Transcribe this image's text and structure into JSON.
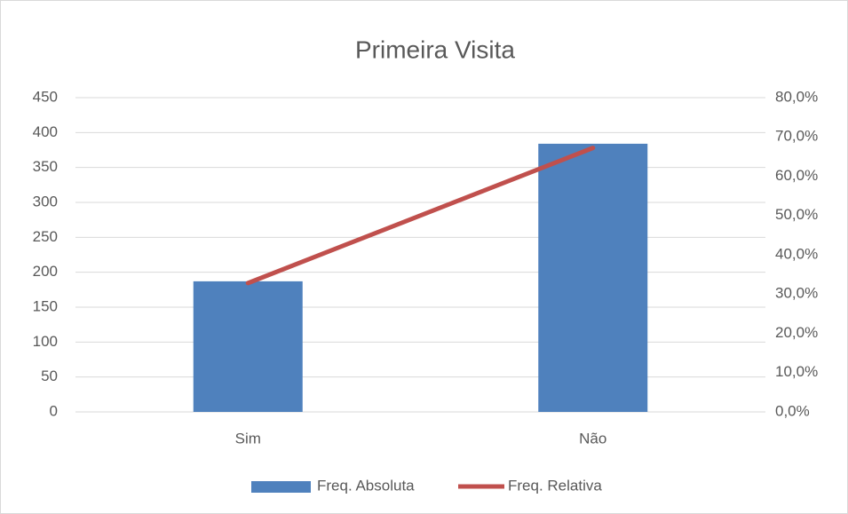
{
  "chart_data": {
    "type": "bar",
    "title": "Primeira Visita",
    "categories": [
      "Sim",
      "Não"
    ],
    "series": [
      {
        "name": "Freq. Absoluta",
        "type": "bar",
        "color": "#4f81bd",
        "values": [
          187,
          384
        ]
      },
      {
        "name": "Freq. Relativa",
        "type": "line",
        "color": "#c0504d",
        "axis": "y2",
        "values": [
          32.8,
          67.2
        ]
      }
    ],
    "ylim": [
      0,
      450
    ],
    "yticks": [
      0,
      50,
      100,
      150,
      200,
      250,
      300,
      350,
      400,
      450
    ],
    "y2lim": [
      0,
      80
    ],
    "y2ticks": [
      {
        "value": 0,
        "label": "0,0%"
      },
      {
        "value": 10,
        "label": "10,0%"
      },
      {
        "value": 20,
        "label": "20,0%"
      },
      {
        "value": 30,
        "label": "30,0%"
      },
      {
        "value": 40,
        "label": "40,0%"
      },
      {
        "value": 50,
        "label": "50,0%"
      },
      {
        "value": 60,
        "label": "60,0%"
      },
      {
        "value": 70,
        "label": "70,0%"
      },
      {
        "value": 80,
        "label": "80,0%"
      }
    ],
    "grid": true,
    "legend": "bottom"
  }
}
